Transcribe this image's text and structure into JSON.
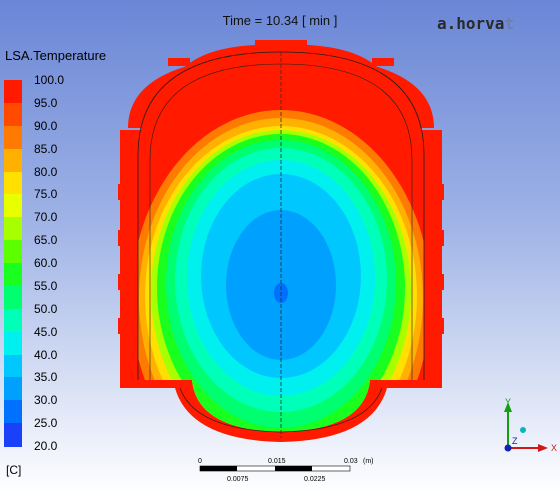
{
  "time_label": "Time = 10.34 [ min ]",
  "logo": {
    "text_a": "a.horva",
    "text_b": "t"
  },
  "legend": {
    "title": "LSA.Temperature",
    "unit": "[C]",
    "labels": [
      "100.0",
      "95.0",
      "90.0",
      "85.0",
      "80.0",
      "75.0",
      "70.0",
      "65.0",
      "60.0",
      "55.0",
      "50.0",
      "45.0",
      "40.0",
      "35.0",
      "30.0",
      "25.0",
      "20.0"
    ],
    "colors": [
      "#ff1a00",
      "#ff4a00",
      "#ff7a00",
      "#ffb000",
      "#ffe000",
      "#e8ff00",
      "#a8ff00",
      "#5cff00",
      "#18ff20",
      "#00ff70",
      "#00ffb8",
      "#00f0f0",
      "#00c8ff",
      "#00a0ff",
      "#0070ff",
      "#1a40f8"
    ]
  },
  "scale_bar": {
    "top_labels": [
      "0",
      "0.015",
      "0.03",
      "(m)"
    ],
    "bottom_labels": [
      "0.0075",
      "0.0225"
    ]
  },
  "axes": {
    "x": "X",
    "y": "Y",
    "z": "Z"
  }
}
